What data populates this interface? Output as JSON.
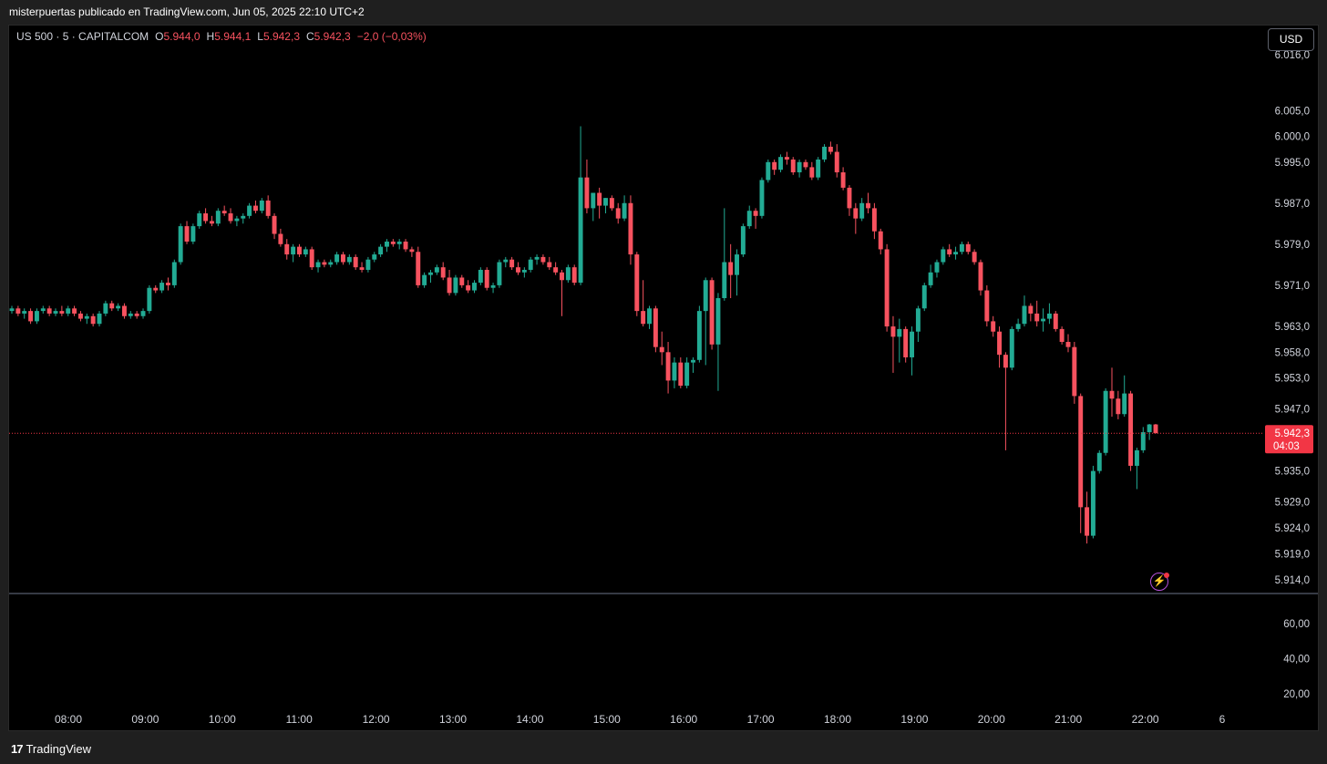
{
  "caption": "misterpuertas publicado en TradingView.com, Jun 05, 2025 22:10 UTC+2",
  "legend": {
    "symbol": "US 500 · 5 · CAPITALCOM",
    "open_label": "O",
    "open": "5.944,0",
    "high_label": "H",
    "high": "5.944,1",
    "low_label": "L",
    "low": "5.942,3",
    "close_label": "C",
    "close": "5.942,3",
    "change": "−2,0 (−0,03%)"
  },
  "currency_button": "USD",
  "current_price": {
    "price": "5.942,3",
    "countdown": "04:03",
    "value": 5942.3
  },
  "footer": {
    "logo_text": "TradingView",
    "logo_mark": "17"
  },
  "colors": {
    "up": "#22ab94",
    "down": "#f7525f",
    "background": "#000000",
    "price_line": "#f23645"
  },
  "icons": [
    "tradingview-logo-icon",
    "lightning-icon"
  ],
  "chart_data": {
    "type": "candlestick",
    "price_axis": {
      "ticks": [
        6016.0,
        6005.0,
        6000.0,
        5995.0,
        5987.0,
        5979.0,
        5971.0,
        5963.0,
        5958.0,
        5953.0,
        5947.0,
        5935.0,
        5929.0,
        5924.0,
        5919.0,
        5914.0
      ],
      "labels": [
        "6.016,0",
        "6.005,0",
        "6.000,0",
        "5.995,0",
        "5.987,0",
        "5.979,0",
        "5.971,0",
        "5.963,0",
        "5.958,0",
        "5.953,0",
        "5.947,0",
        "5.935,0",
        "5.929,0",
        "5.924,0",
        "5.919,0",
        "5.914,0"
      ],
      "scale": "log"
    },
    "indicator_axis": {
      "ticks": [
        60,
        40,
        20
      ],
      "labels": [
        "60,00",
        "40,00",
        "20,00"
      ]
    },
    "time_axis": [
      "08:00",
      "09:00",
      "10:00",
      "11:00",
      "12:00",
      "13:00",
      "14:00",
      "15:00",
      "16:00",
      "17:00",
      "18:00",
      "19:00",
      "20:00",
      "21:00",
      "22:00",
      "6"
    ],
    "candles": [
      [
        5966.0,
        5967.0,
        5965.5,
        5966.5
      ],
      [
        5966.5,
        5967.0,
        5965.0,
        5965.5
      ],
      [
        5965.5,
        5966.5,
        5964.5,
        5966.0
      ],
      [
        5966.0,
        5966.5,
        5963.5,
        5964.0
      ],
      [
        5964.0,
        5966.5,
        5963.5,
        5966.0
      ],
      [
        5966.0,
        5967.0,
        5965.5,
        5966.5
      ],
      [
        5966.5,
        5967.0,
        5965.0,
        5965.5
      ],
      [
        5965.5,
        5966.5,
        5965.0,
        5966.0
      ],
      [
        5966.0,
        5967.0,
        5965.0,
        5965.5
      ],
      [
        5965.5,
        5967.0,
        5965.0,
        5966.5
      ],
      [
        5966.5,
        5967.0,
        5965.0,
        5965.5
      ],
      [
        5965.5,
        5966.0,
        5964.0,
        5964.5
      ],
      [
        5964.5,
        5965.5,
        5963.5,
        5965.0
      ],
      [
        5965.0,
        5965.5,
        5963.0,
        5963.5
      ],
      [
        5963.5,
        5966.0,
        5963.0,
        5965.5
      ],
      [
        5965.5,
        5968.0,
        5965.0,
        5967.5
      ],
      [
        5967.5,
        5968.0,
        5966.0,
        5966.5
      ],
      [
        5966.5,
        5967.5,
        5966.0,
        5967.0
      ],
      [
        5967.0,
        5967.5,
        5964.5,
        5965.0
      ],
      [
        5965.0,
        5966.0,
        5964.5,
        5965.5
      ],
      [
        5965.5,
        5966.0,
        5964.5,
        5965.0
      ],
      [
        5965.0,
        5966.5,
        5964.5,
        5966.0
      ],
      [
        5966.0,
        5971.0,
        5965.5,
        5970.5
      ],
      [
        5970.5,
        5971.0,
        5969.5,
        5970.0
      ],
      [
        5970.0,
        5972.0,
        5969.5,
        5971.5
      ],
      [
        5971.5,
        5972.5,
        5970.0,
        5971.0
      ],
      [
        5971.0,
        5976.0,
        5970.5,
        5975.5
      ],
      [
        5975.5,
        5983.0,
        5975.0,
        5982.5
      ],
      [
        5982.5,
        5983.5,
        5979.0,
        5979.5
      ],
      [
        5979.5,
        5983.0,
        5979.0,
        5982.5
      ],
      [
        5982.5,
        5985.5,
        5982.0,
        5985.0
      ],
      [
        5985.0,
        5986.0,
        5983.0,
        5983.5
      ],
      [
        5983.5,
        5984.5,
        5982.5,
        5983.0
      ],
      [
        5983.0,
        5986.0,
        5982.5,
        5985.5
      ],
      [
        5985.5,
        5986.5,
        5984.5,
        5985.0
      ],
      [
        5985.0,
        5986.0,
        5983.0,
        5983.5
      ],
      [
        5983.5,
        5984.5,
        5982.5,
        5984.0
      ],
      [
        5984.0,
        5985.0,
        5983.0,
        5984.5
      ],
      [
        5984.5,
        5987.0,
        5984.0,
        5986.5
      ],
      [
        5986.5,
        5987.5,
        5985.0,
        5985.5
      ],
      [
        5985.5,
        5988.0,
        5985.0,
        5987.5
      ],
      [
        5987.5,
        5988.5,
        5984.0,
        5984.5
      ],
      [
        5984.5,
        5985.0,
        5980.0,
        5981.0
      ],
      [
        5981.0,
        5982.0,
        5978.5,
        5979.0
      ],
      [
        5979.0,
        5980.0,
        5976.0,
        5977.0
      ],
      [
        5977.0,
        5979.0,
        5975.5,
        5978.5
      ],
      [
        5978.5,
        5979.0,
        5976.5,
        5977.0
      ],
      [
        5977.0,
        5978.5,
        5976.5,
        5978.0
      ],
      [
        5978.0,
        5978.5,
        5974.0,
        5974.5
      ],
      [
        5974.5,
        5976.0,
        5973.5,
        5975.5
      ],
      [
        5975.5,
        5976.0,
        5974.5,
        5975.0
      ],
      [
        5975.0,
        5976.0,
        5974.5,
        5975.5
      ],
      [
        5975.5,
        5977.5,
        5975.0,
        5977.0
      ],
      [
        5977.0,
        5977.5,
        5975.0,
        5975.5
      ],
      [
        5975.5,
        5977.0,
        5975.0,
        5976.5
      ],
      [
        5976.5,
        5977.0,
        5974.0,
        5974.5
      ],
      [
        5974.5,
        5975.5,
        5973.5,
        5974.0
      ],
      [
        5974.0,
        5976.5,
        5973.5,
        5976.0
      ],
      [
        5976.0,
        5977.5,
        5975.5,
        5977.0
      ],
      [
        5977.0,
        5979.0,
        5976.5,
        5978.5
      ],
      [
        5978.5,
        5980.0,
        5977.5,
        5979.5
      ],
      [
        5979.5,
        5980.0,
        5978.5,
        5979.0
      ],
      [
        5979.0,
        5980.0,
        5978.0,
        5979.5
      ],
      [
        5979.5,
        5980.0,
        5977.5,
        5978.0
      ],
      [
        5978.0,
        5978.5,
        5976.5,
        5977.5
      ],
      [
        5977.5,
        5978.5,
        5970.5,
        5971.0
      ],
      [
        5971.0,
        5973.5,
        5970.5,
        5973.0
      ],
      [
        5973.0,
        5974.0,
        5971.5,
        5973.5
      ],
      [
        5973.5,
        5975.0,
        5973.0,
        5974.5
      ],
      [
        5974.5,
        5975.5,
        5972.0,
        5972.5
      ],
      [
        5972.5,
        5974.0,
        5969.0,
        5969.5
      ],
      [
        5969.5,
        5973.0,
        5969.0,
        5972.5
      ],
      [
        5972.5,
        5973.0,
        5970.5,
        5971.0
      ],
      [
        5971.0,
        5972.0,
        5969.5,
        5970.0
      ],
      [
        5970.0,
        5972.0,
        5969.5,
        5971.5
      ],
      [
        5971.5,
        5974.5,
        5971.0,
        5974.0
      ],
      [
        5974.0,
        5974.5,
        5970.0,
        5970.5
      ],
      [
        5970.5,
        5971.5,
        5969.5,
        5971.0
      ],
      [
        5971.0,
        5976.0,
        5970.5,
        5975.5
      ],
      [
        5975.5,
        5976.5,
        5974.5,
        5976.0
      ],
      [
        5976.0,
        5976.5,
        5974.0,
        5974.5
      ],
      [
        5974.5,
        5975.5,
        5973.0,
        5973.5
      ],
      [
        5973.5,
        5974.5,
        5972.5,
        5974.0
      ],
      [
        5974.0,
        5976.5,
        5973.5,
        5976.0
      ],
      [
        5976.0,
        5977.0,
        5975.0,
        5976.5
      ],
      [
        5976.5,
        5977.0,
        5975.0,
        5975.5
      ],
      [
        5975.5,
        5976.5,
        5974.0,
        5974.5
      ],
      [
        5974.5,
        5975.5,
        5973.0,
        5973.5
      ],
      [
        5973.5,
        5974.0,
        5965.0,
        5972.0
      ],
      [
        5972.0,
        5975.0,
        5971.5,
        5974.5
      ],
      [
        5974.5,
        5975.0,
        5971.0,
        5971.5
      ],
      [
        5971.5,
        6002.0,
        5971.0,
        5992.0
      ],
      [
        5992.0,
        5995.5,
        5985.0,
        5986.0
      ],
      [
        5986.0,
        5989.0,
        5983.5,
        5989.0
      ],
      [
        5989.0,
        5990.0,
        5984.0,
        5986.5
      ],
      [
        5986.5,
        5988.0,
        5985.0,
        5988.0
      ],
      [
        5988.0,
        5988.5,
        5985.5,
        5986.0
      ],
      [
        5986.0,
        5987.0,
        5983.0,
        5984.0
      ],
      [
        5984.0,
        5988.5,
        5983.5,
        5987.0
      ],
      [
        5987.0,
        5988.5,
        5975.0,
        5977.0
      ],
      [
        5977.0,
        5977.5,
        5965.0,
        5966.0
      ],
      [
        5966.0,
        5972.0,
        5963.0,
        5963.5
      ],
      [
        5963.5,
        5967.0,
        5962.5,
        5966.5
      ],
      [
        5966.5,
        5967.0,
        5958.0,
        5959.0
      ],
      [
        5959.0,
        5962.0,
        5955.5,
        5958.0
      ],
      [
        5958.0,
        5960.0,
        5950.0,
        5952.5
      ],
      [
        5952.5,
        5957.0,
        5951.0,
        5956.0
      ],
      [
        5956.0,
        5957.0,
        5951.0,
        5951.5
      ],
      [
        5951.5,
        5957.0,
        5951.0,
        5956.0
      ],
      [
        5956.0,
        5957.0,
        5954.0,
        5956.5
      ],
      [
        5956.5,
        5967.0,
        5956.0,
        5966.0
      ],
      [
        5966.0,
        5972.5,
        5955.5,
        5972.0
      ],
      [
        5972.0,
        5972.5,
        5958.5,
        5959.5
      ],
      [
        5959.5,
        5969.5,
        5950.5,
        5968.5
      ],
      [
        5968.5,
        5986.0,
        5968.0,
        5975.5
      ],
      [
        5975.5,
        5979.0,
        5968.5,
        5973.0
      ],
      [
        5973.0,
        5978.0,
        5969.0,
        5977.0
      ],
      [
        5977.0,
        5983.0,
        5976.5,
        5982.5
      ],
      [
        5982.5,
        5986.5,
        5982.0,
        5985.5
      ],
      [
        5985.5,
        5986.0,
        5982.0,
        5984.5
      ],
      [
        5984.5,
        5992.0,
        5984.0,
        5991.5
      ],
      [
        5991.5,
        5995.5,
        5991.0,
        5995.0
      ],
      [
        5995.0,
        5995.5,
        5992.5,
        5993.5
      ],
      [
        5993.5,
        5996.5,
        5993.0,
        5996.0
      ],
      [
        5996.0,
        5997.0,
        5994.5,
        5995.5
      ],
      [
        5995.5,
        5996.0,
        5992.5,
        5993.0
      ],
      [
        5993.0,
        5995.5,
        5992.0,
        5995.0
      ],
      [
        5995.0,
        5995.5,
        5993.5,
        5994.0
      ],
      [
        5994.0,
        5995.0,
        5991.5,
        5992.0
      ],
      [
        5992.0,
        5996.0,
        5991.5,
        5995.5
      ],
      [
        5995.5,
        5998.5,
        5995.0,
        5998.0
      ],
      [
        5998.0,
        5999.0,
        5996.5,
        5997.0
      ],
      [
        5997.0,
        5998.5,
        5992.0,
        5993.0
      ],
      [
        5993.0,
        5994.0,
        5989.5,
        5990.0
      ],
      [
        5990.0,
        5990.5,
        5984.5,
        5986.0
      ],
      [
        5986.0,
        5987.0,
        5981.0,
        5984.0
      ],
      [
        5984.0,
        5988.0,
        5983.5,
        5987.0
      ],
      [
        5987.0,
        5989.0,
        5985.0,
        5986.0
      ],
      [
        5986.0,
        5987.0,
        5980.0,
        5981.5
      ],
      [
        5981.5,
        5982.0,
        5977.0,
        5978.0
      ],
      [
        5978.0,
        5979.0,
        5962.0,
        5963.0
      ],
      [
        5963.0,
        5965.0,
        5954.0,
        5961.0
      ],
      [
        5961.0,
        5964.5,
        5956.0,
        5962.5
      ],
      [
        5962.5,
        5963.0,
        5956.0,
        5957.0
      ],
      [
        5957.0,
        5963.0,
        5953.5,
        5962.0
      ],
      [
        5962.0,
        5967.0,
        5960.0,
        5966.5
      ],
      [
        5966.5,
        5971.5,
        5966.0,
        5971.0
      ],
      [
        5971.0,
        5975.0,
        5970.5,
        5973.5
      ],
      [
        5973.5,
        5976.0,
        5972.5,
        5975.5
      ],
      [
        5975.5,
        5978.5,
        5975.0,
        5978.0
      ],
      [
        5978.0,
        5979.0,
        5976.5,
        5977.0
      ],
      [
        5977.0,
        5978.5,
        5976.0,
        5977.5
      ],
      [
        5977.5,
        5979.5,
        5977.0,
        5979.0
      ],
      [
        5979.0,
        5979.5,
        5977.0,
        5977.5
      ],
      [
        5977.5,
        5978.0,
        5975.0,
        5975.5
      ],
      [
        5975.5,
        5976.0,
        5969.0,
        5970.0
      ],
      [
        5970.0,
        5971.0,
        5963.0,
        5964.0
      ],
      [
        5964.0,
        5965.0,
        5961.0,
        5962.0
      ],
      [
        5962.0,
        5963.0,
        5955.0,
        5957.5
      ],
      [
        5957.5,
        5958.0,
        5939.0,
        5955.0
      ],
      [
        5955.0,
        5963.0,
        5954.5,
        5962.5
      ],
      [
        5962.5,
        5964.5,
        5962.0,
        5963.5
      ],
      [
        5963.5,
        5969.0,
        5963.0,
        5967.0
      ],
      [
        5967.0,
        5967.5,
        5964.0,
        5965.5
      ],
      [
        5965.5,
        5968.0,
        5963.0,
        5964.0
      ],
      [
        5964.0,
        5966.5,
        5962.0,
        5964.5
      ],
      [
        5964.5,
        5967.5,
        5963.5,
        5965.5
      ],
      [
        5965.5,
        5966.0,
        5962.0,
        5962.5
      ],
      [
        5962.5,
        5963.0,
        5959.5,
        5960.0
      ],
      [
        5960.0,
        5961.5,
        5958.0,
        5959.0
      ],
      [
        5959.0,
        5960.0,
        5948.0,
        5949.5
      ],
      [
        5949.5,
        5950.0,
        5923.0,
        5928.0
      ],
      [
        5928.0,
        5931.0,
        5921.0,
        5922.5
      ],
      [
        5922.5,
        5936.0,
        5922.0,
        5935.0
      ],
      [
        5935.0,
        5939.0,
        5934.5,
        5938.5
      ],
      [
        5938.5,
        5951.0,
        5938.0,
        5950.5
      ],
      [
        5950.5,
        5955.0,
        5945.5,
        5949.0
      ],
      [
        5949.0,
        5950.5,
        5945.0,
        5946.0
      ],
      [
        5946.0,
        5953.5,
        5945.5,
        5950.0
      ],
      [
        5950.0,
        5950.5,
        5935.0,
        5936.0
      ],
      [
        5936.0,
        5939.5,
        5931.5,
        5939.0
      ],
      [
        5939.0,
        5943.5,
        5938.5,
        5942.5
      ],
      [
        5942.5,
        5944.1,
        5941.0,
        5944.0
      ],
      [
        5944.0,
        5944.1,
        5942.3,
        5942.3
      ]
    ]
  }
}
